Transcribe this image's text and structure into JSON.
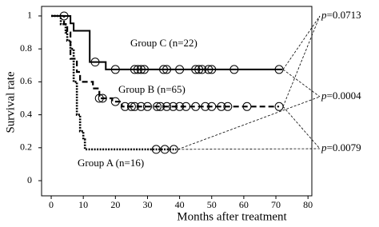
{
  "chart_data": {
    "type": "step",
    "x_label": "Months after treatment",
    "y_label": "Survival rate",
    "xlim": [
      -3,
      81.2
    ],
    "ylim": [
      -0.092,
      1.058
    ],
    "xticks": [
      0,
      10,
      20,
      30,
      40,
      50,
      60,
      70,
      80
    ],
    "yticks": [
      0,
      0.2,
      0.4,
      0.6,
      0.8,
      1
    ],
    "series": [
      {
        "name": "Group C (n=22)",
        "color": "#000000",
        "style": "solid",
        "x": [
          0,
          6,
          7,
          12,
          17,
          72
        ],
        "values": [
          1,
          0.955,
          0.91,
          0.72,
          0.675,
          0.675
        ],
        "censored": {
          "x": [
            4,
            13.7,
            20,
            26,
            27,
            28,
            29,
            35,
            36,
            40,
            45,
            46,
            47,
            49,
            50,
            57,
            71
          ],
          "values": [
            1,
            0.72,
            0.675,
            0.675,
            0.675,
            0.675,
            0.675,
            0.675,
            0.675,
            0.675,
            0.675,
            0.675,
            0.675,
            0.675,
            0.675,
            0.675,
            0.675
          ]
        }
      },
      {
        "name": "Group B (n=65)",
        "color": "#000000",
        "style": "dashed",
        "x": [
          0,
          4,
          5,
          6,
          8,
          9,
          13,
          15,
          19,
          22,
          71
        ],
        "values": [
          1,
          0.95,
          0.9,
          0.74,
          0.66,
          0.6,
          0.56,
          0.5,
          0.48,
          0.45,
          0.45
        ],
        "censored": {
          "x": [
            15,
            16,
            20,
            23,
            25,
            26,
            28,
            30,
            33,
            34,
            36,
            38,
            40,
            42,
            45,
            48,
            50,
            53,
            55,
            61,
            71
          ],
          "values": [
            0.5,
            0.5,
            0.48,
            0.45,
            0.45,
            0.45,
            0.45,
            0.45,
            0.45,
            0.45,
            0.45,
            0.45,
            0.45,
            0.45,
            0.45,
            0.45,
            0.45,
            0.45,
            0.45,
            0.45,
            0.45
          ]
        }
      },
      {
        "name": "Group A (n=16)",
        "color": "#000000",
        "style": "dotted",
        "x": [
          0,
          3,
          4.5,
          5,
          6,
          7,
          8,
          9,
          10,
          10.5,
          39
        ],
        "values": [
          1,
          0.95,
          0.9,
          0.85,
          0.8,
          0.6,
          0.4,
          0.3,
          0.25,
          0.19,
          0.19
        ],
        "censored": {
          "x": [
            32.7,
            35.4,
            38.2
          ],
          "values": [
            0.19,
            0.19,
            0.19
          ]
        }
      }
    ],
    "comparisons": [
      {
        "symbol": "p",
        "text": "=0.0713"
      },
      {
        "symbol": "p",
        "text": "=0.0004"
      },
      {
        "symbol": "p",
        "text": "=0.0079"
      }
    ]
  }
}
